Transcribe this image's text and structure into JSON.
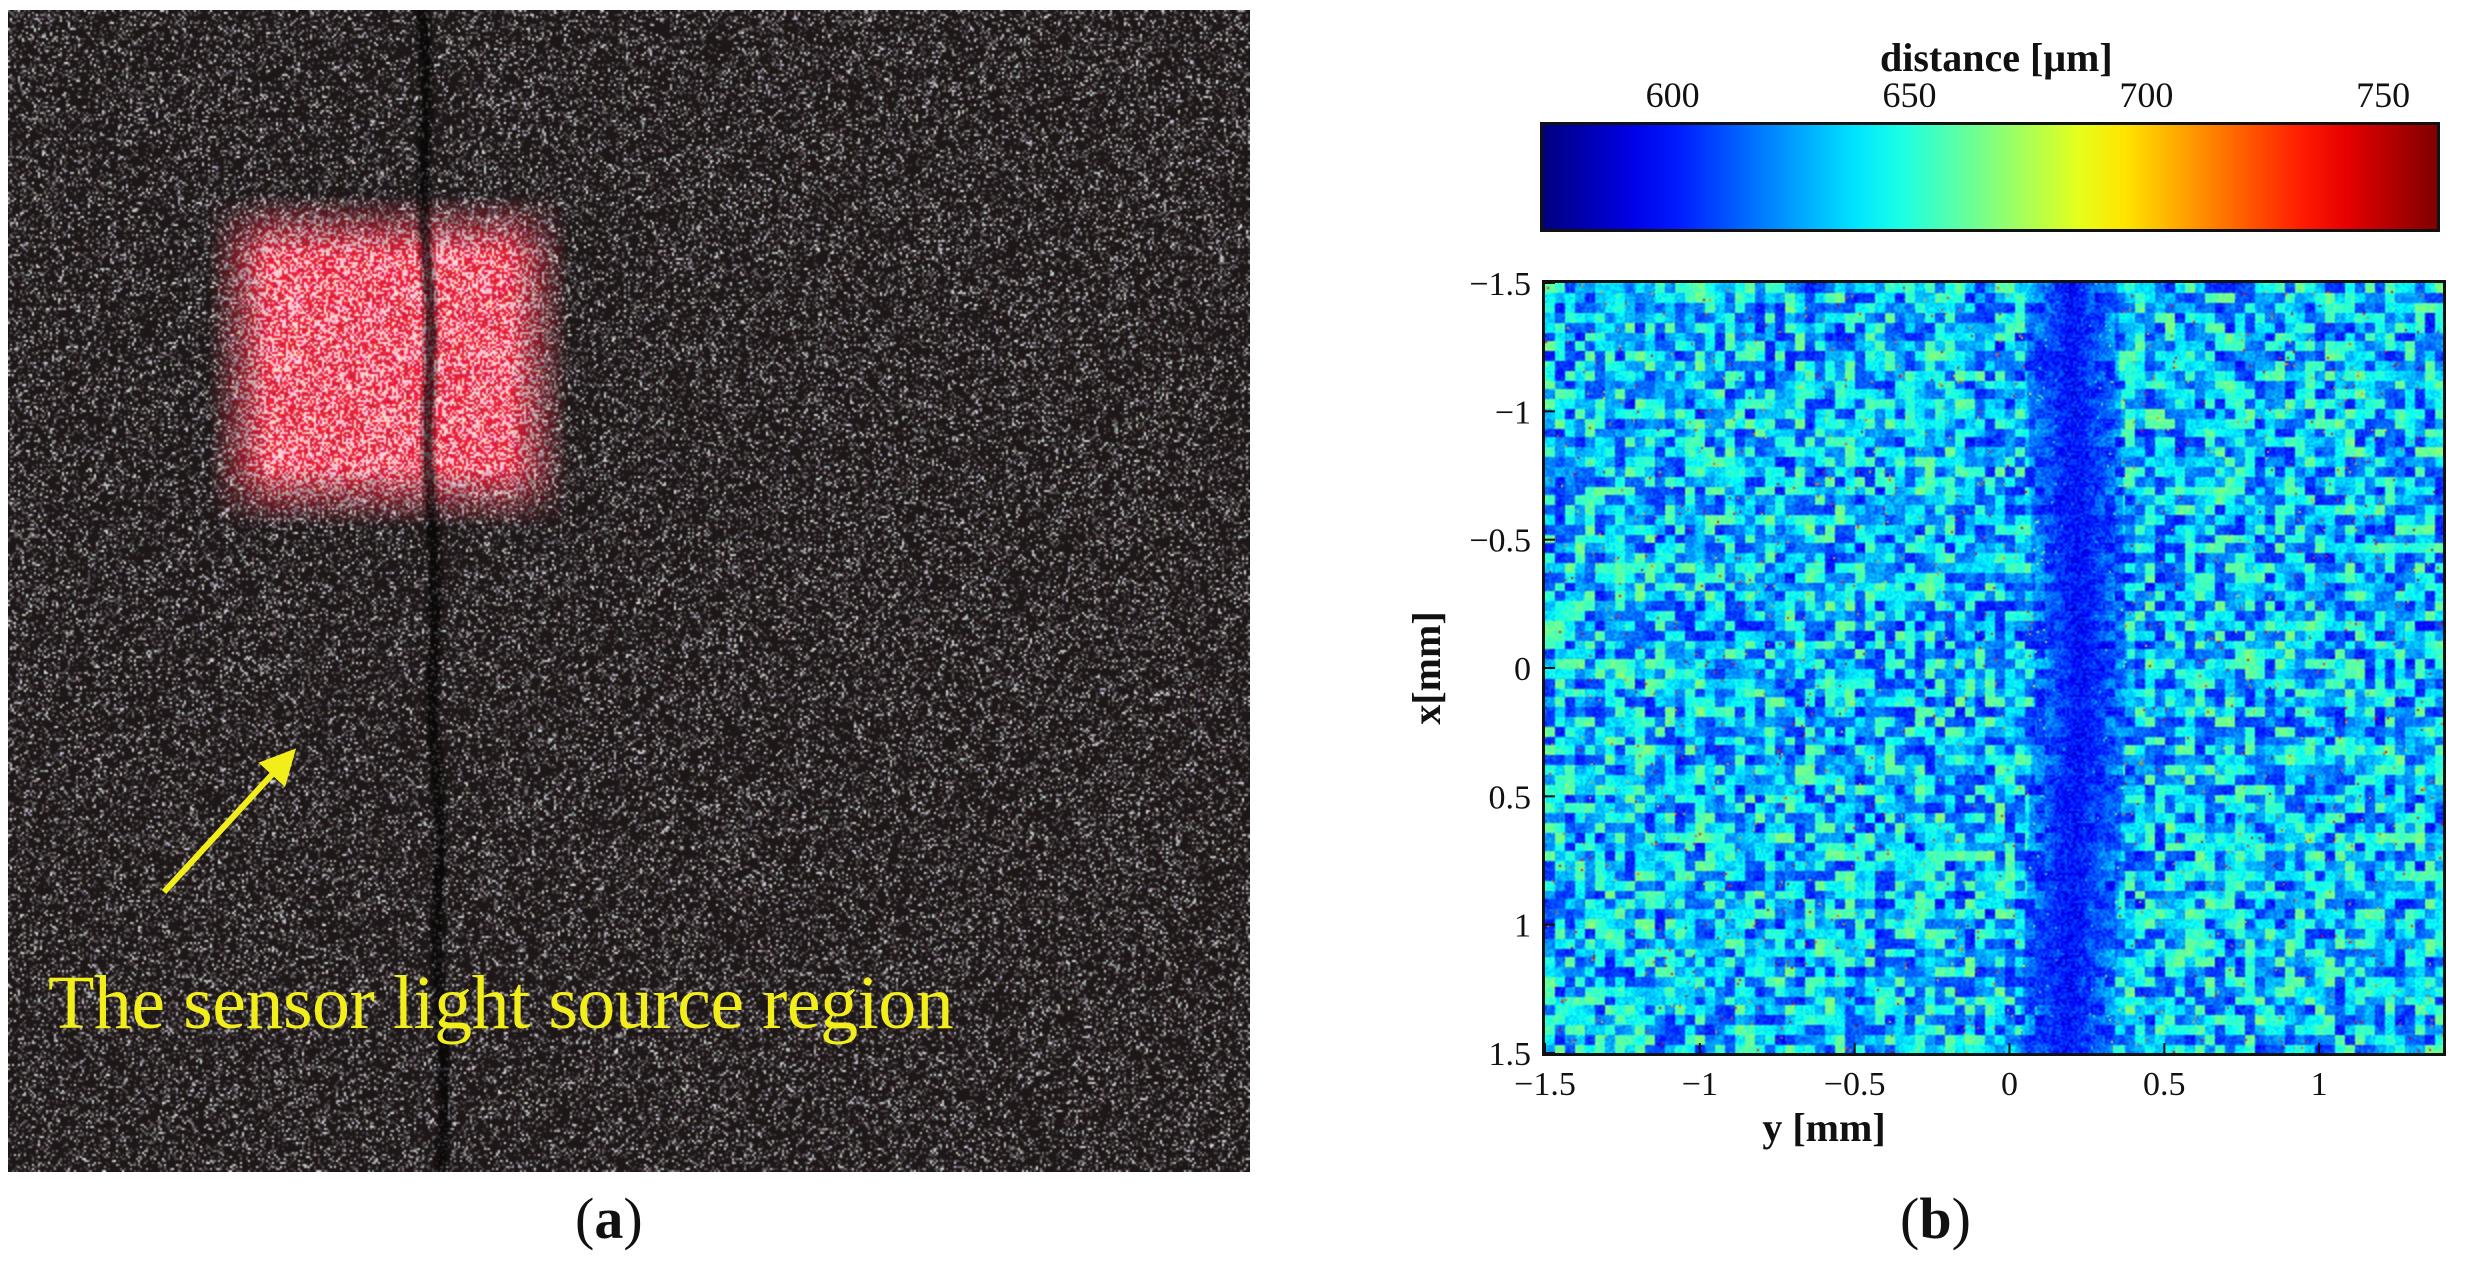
{
  "panel_a": {
    "annotation": "The sensor light source region",
    "caption": {
      "open": "(",
      "letter": "a",
      "close": ")"
    },
    "colors": {
      "annotation": "#f2ee19",
      "laser": "#ff1030",
      "background": "#1d1717"
    }
  },
  "panel_b": {
    "caption": {
      "open": "(",
      "letter": "b",
      "close": ")"
    },
    "chart_data": {
      "type": "heatmap",
      "title": "",
      "colorbar": {
        "label": "distance [μm]",
        "range": [
          572,
          762
        ],
        "ticks": [
          600,
          650,
          700,
          750
        ],
        "colormap": "jet"
      },
      "xlabel": "y [mm]",
      "ylabel": "x[mm]",
      "xlim": [
        -1.5,
        1.4
      ],
      "ylim": [
        -1.5,
        1.5
      ],
      "y_axis_reversed": true,
      "xticks": [
        -1.5,
        -1,
        -0.5,
        0,
        0.5,
        1
      ],
      "xtick_labels": [
        "−1.5",
        "−1",
        "−0.5",
        "0",
        "0.5",
        "1"
      ],
      "yticks": [
        -1.5,
        -1,
        -0.5,
        0,
        0.5,
        1,
        1.5
      ],
      "ytick_labels": [
        "−1.5",
        "−1",
        "−0.5",
        "0",
        "0.5",
        "1",
        "1.5"
      ],
      "features": {
        "background_level_um": 640,
        "groove_level_um": 595,
        "groove_y_mm": [
          0.2,
          0.26
        ],
        "groove_width_mm": 0.3
      }
    }
  }
}
